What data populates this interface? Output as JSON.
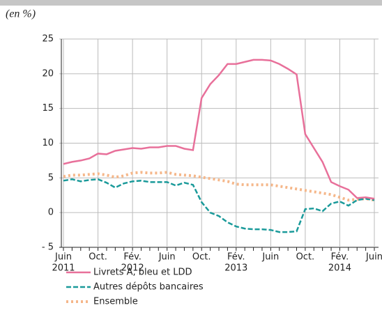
{
  "chart_data": {
    "type": "line",
    "unit_label": "(en %)",
    "categories": [
      "Juin",
      null,
      null,
      null,
      "Oct.",
      null,
      null,
      null,
      "Fév.",
      null,
      null,
      null,
      "Juin",
      null,
      null,
      null,
      "Oct.",
      null,
      null,
      null,
      "Fév.",
      null,
      null,
      null,
      "Juin",
      null,
      null,
      null,
      "Oct.",
      null,
      null,
      null,
      "Fév.",
      null,
      null,
      null,
      "Juin"
    ],
    "category_years": [
      "2011",
      null,
      null,
      null,
      null,
      null,
      null,
      null,
      "2012",
      null,
      null,
      null,
      null,
      null,
      null,
      null,
      null,
      null,
      null,
      null,
      "2013",
      null,
      null,
      null,
      null,
      null,
      null,
      null,
      null,
      null,
      null,
      null,
      "2014",
      null,
      null,
      null,
      null
    ],
    "ylim": [
      -5,
      25
    ],
    "yticks": [
      {
        "value": -5,
        "label": "- 5"
      },
      0,
      5,
      10,
      15,
      20,
      25
    ],
    "grid": true,
    "series": [
      {
        "name": "Livrets A, bleu et LDD",
        "color": "#e8709a",
        "style": "solid",
        "values": [
          7.0,
          7.3,
          7.5,
          7.8,
          8.5,
          8.4,
          8.9,
          9.1,
          9.3,
          9.2,
          9.4,
          9.4,
          9.6,
          9.6,
          9.2,
          9.0,
          16.5,
          18.5,
          19.8,
          21.4,
          21.4,
          21.7,
          22.0,
          22.0,
          21.9,
          21.4,
          20.7,
          19.9,
          11.3,
          9.3,
          7.3,
          4.4,
          3.8,
          3.3,
          2.1,
          2.2,
          2.0
        ]
      },
      {
        "name": "Autres dépôts bancaires",
        "color": "#1a9a9a",
        "style": "dashed",
        "values": [
          4.6,
          4.8,
          4.5,
          4.7,
          4.8,
          4.3,
          3.6,
          4.2,
          4.5,
          4.6,
          4.4,
          4.4,
          4.4,
          3.9,
          4.3,
          4.0,
          1.5,
          0.0,
          -0.5,
          -1.4,
          -2.0,
          -2.3,
          -2.4,
          -2.4,
          -2.5,
          -2.8,
          -2.8,
          -2.7,
          0.5,
          0.6,
          0.2,
          1.3,
          1.6,
          1.0,
          1.8,
          2.0,
          1.8
        ]
      },
      {
        "name": "Ensemble",
        "color": "#f5b78a",
        "style": "dotted",
        "values": [
          5.2,
          5.4,
          5.4,
          5.5,
          5.6,
          5.4,
          5.1,
          5.3,
          5.7,
          5.8,
          5.7,
          5.7,
          5.8,
          5.5,
          5.4,
          5.3,
          5.1,
          4.9,
          4.7,
          4.5,
          4.1,
          4.0,
          4.0,
          4.0,
          4.0,
          3.8,
          3.6,
          3.4,
          3.2,
          3.0,
          2.8,
          2.6,
          2.2,
          1.8,
          1.9,
          2.0,
          1.8
        ]
      }
    ]
  }
}
